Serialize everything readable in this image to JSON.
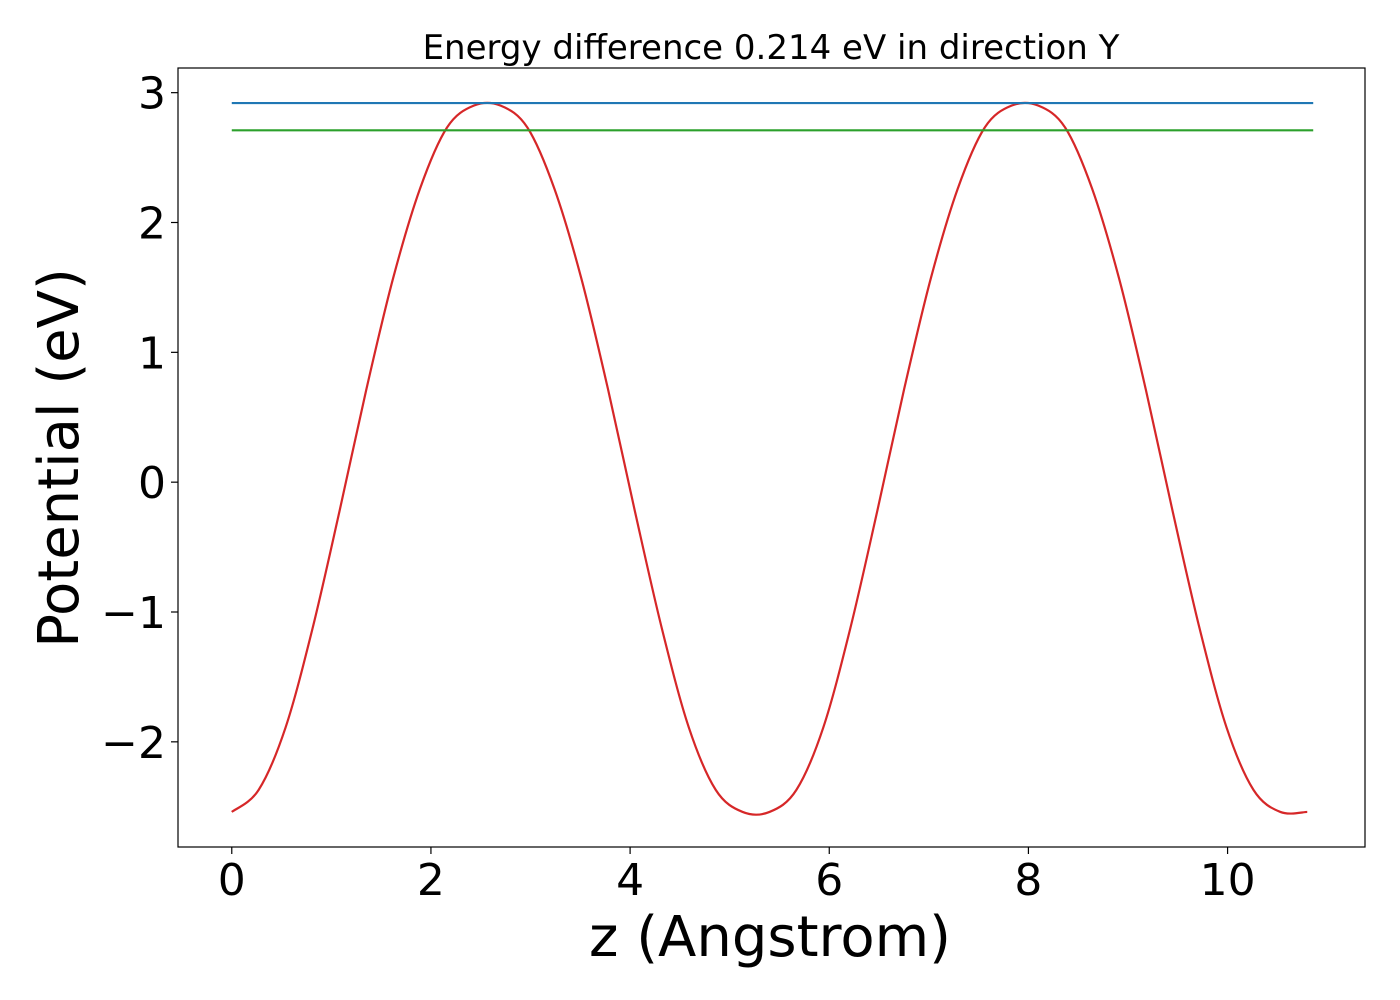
{
  "chart_data": {
    "type": "line",
    "title": "Energy difference 0.214 eV in direction Y",
    "xlabel": "z (Angstrom)",
    "ylabel": "Potential (eV)",
    "xlim": [
      -0.54,
      11.38
    ],
    "ylim": [
      -2.81,
      3.19
    ],
    "xticks": [
      0,
      2,
      4,
      6,
      8,
      10
    ],
    "xtick_labels": [
      "0",
      "2",
      "4",
      "6",
      "8",
      "10"
    ],
    "yticks": [
      -2,
      -1,
      0,
      1,
      2,
      3
    ],
    "ytick_labels": [
      "−2",
      "−1",
      "0",
      "1",
      "2",
      "3"
    ],
    "grid": false,
    "series": [
      {
        "color": "#d62728",
        "x": [
          0,
          0.27,
          0.54,
          0.81,
          1.08,
          1.35,
          1.62,
          1.89,
          2.16,
          2.43,
          2.7,
          2.97,
          3.24,
          3.51,
          3.78,
          4.05,
          4.32,
          4.59,
          4.86,
          5.13,
          5.4,
          5.67,
          5.94,
          6.21,
          6.48,
          6.75,
          7.02,
          7.29,
          7.56,
          7.83,
          8.1,
          8.37,
          8.64,
          8.91,
          9.18,
          9.45,
          9.72,
          9.99,
          10.26,
          10.53,
          10.8
        ],
        "y": [
          -2.54,
          -2.37,
          -1.89,
          -1.13,
          -0.23,
          0.71,
          1.57,
          2.26,
          2.73,
          2.9,
          2.9,
          2.73,
          2.26,
          1.57,
          0.71,
          -0.23,
          -1.13,
          -1.89,
          -2.37,
          -2.54,
          -2.54,
          -2.37,
          -1.89,
          -1.13,
          -0.23,
          0.71,
          1.57,
          2.26,
          2.73,
          2.9,
          2.9,
          2.73,
          2.26,
          1.57,
          0.71,
          -0.23,
          -1.13,
          -1.89,
          -2.37,
          -2.54,
          -2.54
        ]
      },
      {
        "color": "#1f77b4",
        "x": [
          0,
          10.86
        ],
        "y": [
          2.92,
          2.92
        ]
      },
      {
        "color": "#2ca02c",
        "x": [
          0,
          10.86
        ],
        "y": [
          2.71,
          2.71
        ]
      }
    ]
  }
}
